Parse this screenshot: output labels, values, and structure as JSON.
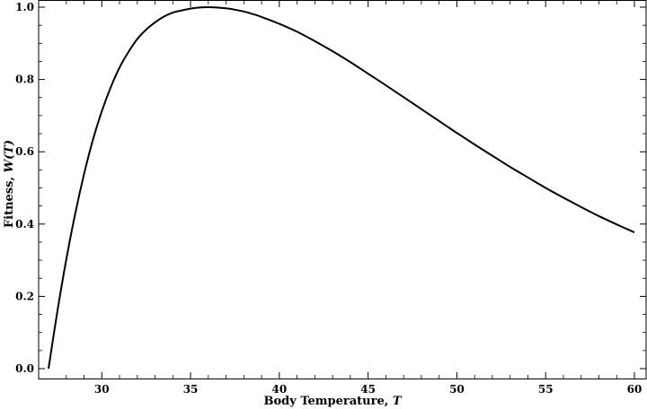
{
  "chart_data": {
    "type": "line",
    "xlabel": "Body Temperature, ",
    "xlabel_var": "T",
    "ylabel": "Fitness, ",
    "ylabel_var": "W(T)",
    "xlim": [
      27,
      60
    ],
    "ylim": [
      0,
      1.0
    ],
    "x_ticks": [
      30,
      35,
      40,
      45,
      50,
      55,
      60
    ],
    "x_tick_labels": [
      "30",
      "35",
      "40",
      "45",
      "50",
      "55",
      "60"
    ],
    "y_ticks": [
      0,
      0.2,
      0.4,
      0.6,
      0.8,
      1.0
    ],
    "y_tick_labels": [
      "0.0",
      "0.2",
      "0.4",
      "0.6",
      "0.8",
      "1.0"
    ],
    "grid": false,
    "line_color": "#000000",
    "series": [
      {
        "x": [
          27,
          27.5,
          28,
          28.5,
          29,
          29.5,
          30,
          30.5,
          31,
          31.5,
          32,
          32.5,
          33,
          33.5,
          34,
          34.5,
          35,
          35.5,
          36,
          36.5,
          36.7,
          37,
          37.5,
          38,
          38.5,
          39,
          40,
          41,
          42,
          43,
          44,
          45,
          46,
          47,
          48,
          49,
          50,
          51,
          52,
          53,
          54,
          55,
          56,
          57,
          58,
          59,
          60
        ],
        "y": [
          0.0,
          0.159,
          0.302,
          0.428,
          0.538,
          0.633,
          0.712,
          0.778,
          0.833,
          0.876,
          0.912,
          0.938,
          0.958,
          0.974,
          0.985,
          0.991,
          0.996,
          0.999,
          1.0,
          0.999,
          0.998,
          0.997,
          0.993,
          0.988,
          0.981,
          0.973,
          0.954,
          0.932,
          0.906,
          0.878,
          0.848,
          0.816,
          0.784,
          0.751,
          0.718,
          0.685,
          0.652,
          0.62,
          0.589,
          0.558,
          0.529,
          0.5,
          0.473,
          0.447,
          0.422,
          0.399,
          0.377
        ]
      }
    ]
  }
}
